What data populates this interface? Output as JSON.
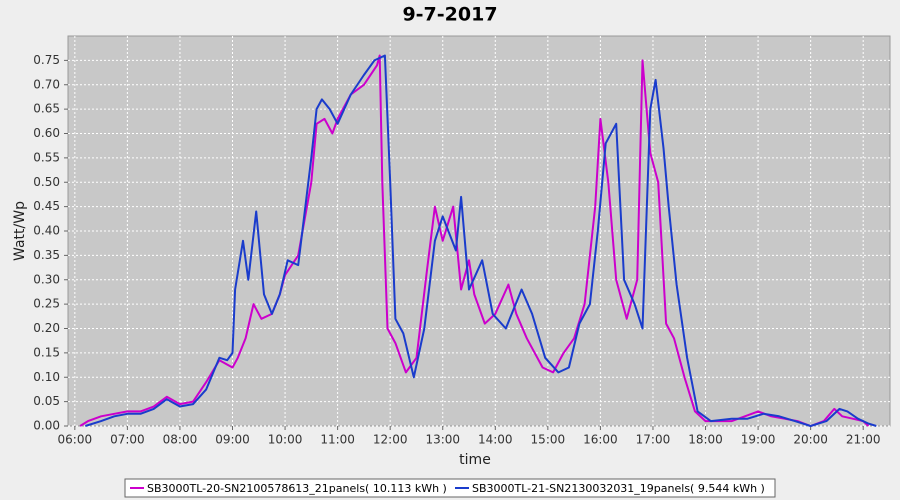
{
  "chart_data": {
    "type": "line",
    "title": "9-7-2017",
    "x_label": "time",
    "y_label": "Watt/Wp",
    "xlim": [
      5.87,
      21.51
    ],
    "xticks": [
      {
        "value": 6,
        "label": "06:00"
      },
      {
        "value": 7,
        "label": "07:00"
      },
      {
        "value": 8,
        "label": "08:00"
      },
      {
        "value": 9,
        "label": "09:00"
      },
      {
        "value": 10,
        "label": "10:00"
      },
      {
        "value": 11,
        "label": "11:00"
      },
      {
        "value": 12,
        "label": "12:00"
      },
      {
        "value": 13,
        "label": "13:00"
      },
      {
        "value": 14,
        "label": "14:00"
      },
      {
        "value": 15,
        "label": "15:00"
      },
      {
        "value": 16,
        "label": "16:00"
      },
      {
        "value": 17,
        "label": "17:00"
      },
      {
        "value": 18,
        "label": "18:00"
      },
      {
        "value": 19,
        "label": "19:00"
      },
      {
        "value": 20,
        "label": "20:00"
      },
      {
        "value": 21,
        "label": "21:00"
      }
    ],
    "ylim": [
      0,
      0.8
    ],
    "yticks": [
      {
        "value": 0,
        "label": "0.00"
      },
      0.05,
      {
        "value": 0.1,
        "label": "0.10"
      },
      0.15,
      {
        "value": 0.2,
        "label": "0.20"
      },
      0.25,
      {
        "value": 0.3,
        "label": "0.30"
      },
      0.35,
      {
        "value": 0.4,
        "label": "0.40"
      },
      0.45,
      {
        "value": 0.5,
        "label": "0.50"
      },
      0.55,
      {
        "value": 0.6,
        "label": "0.60"
      },
      0.65,
      {
        "value": 0.7,
        "label": "0.70"
      },
      0.75
    ],
    "grid": true,
    "legend": "bottom",
    "series": [
      {
        "name": "SB3000TL-20-SN2100578613_21panels( 10.113 kWh )",
        "color": "#cc00cc",
        "x": [
          6.1,
          6.25,
          6.5,
          6.75,
          7.0,
          7.25,
          7.5,
          7.75,
          8.0,
          8.25,
          8.5,
          8.75,
          9.0,
          9.1,
          9.25,
          9.4,
          9.55,
          9.75,
          9.9,
          10.0,
          10.25,
          10.5,
          10.6,
          10.75,
          10.9,
          11.0,
          11.25,
          11.5,
          11.75,
          11.8,
          11.85,
          11.95,
          12.1,
          12.3,
          12.5,
          12.7,
          12.85,
          13.0,
          13.2,
          13.35,
          13.5,
          13.6,
          13.8,
          14.0,
          14.25,
          14.4,
          14.6,
          14.9,
          15.1,
          15.3,
          15.5,
          15.7,
          15.9,
          16.0,
          16.15,
          16.3,
          16.5,
          16.7,
          16.8,
          16.95,
          17.1,
          17.25,
          17.4,
          17.6,
          17.8,
          18.0,
          18.25,
          18.5,
          18.75,
          19.0,
          19.25,
          19.5,
          19.75,
          20.0,
          20.25,
          20.45,
          20.6,
          20.8,
          21.0,
          21.1
        ],
        "values": [
          0,
          0.01,
          0.02,
          0.025,
          0.03,
          0.03,
          0.04,
          0.06,
          0.045,
          0.05,
          0.09,
          0.135,
          0.12,
          0.14,
          0.18,
          0.25,
          0.22,
          0.23,
          0.27,
          0.31,
          0.35,
          0.5,
          0.62,
          0.63,
          0.6,
          0.63,
          0.68,
          0.7,
          0.74,
          0.76,
          0.5,
          0.2,
          0.17,
          0.11,
          0.14,
          0.32,
          0.45,
          0.38,
          0.45,
          0.28,
          0.34,
          0.27,
          0.21,
          0.23,
          0.29,
          0.23,
          0.18,
          0.12,
          0.11,
          0.15,
          0.18,
          0.25,
          0.45,
          0.63,
          0.5,
          0.3,
          0.22,
          0.3,
          0.75,
          0.56,
          0.5,
          0.21,
          0.18,
          0.1,
          0.03,
          0.01,
          0.01,
          0.01,
          0.02,
          0.03,
          0.02,
          0.015,
          0.01,
          0,
          0.01,
          0.035,
          0.02,
          0.015,
          0.01,
          0
        ]
      },
      {
        "name": "SB3000TL-21-SN2130032031_19panels( 9.544 kWh )",
        "color": "#1a3ccc",
        "x": [
          6.2,
          6.5,
          6.75,
          7.0,
          7.25,
          7.5,
          7.75,
          8.0,
          8.25,
          8.5,
          8.75,
          8.9,
          9.0,
          9.05,
          9.2,
          9.3,
          9.45,
          9.6,
          9.75,
          9.9,
          10.05,
          10.25,
          10.5,
          10.6,
          10.7,
          10.85,
          11.0,
          11.25,
          11.5,
          11.7,
          11.9,
          12.0,
          12.1,
          12.25,
          12.45,
          12.65,
          12.85,
          13.0,
          13.25,
          13.35,
          13.5,
          13.75,
          13.95,
          14.2,
          14.5,
          14.7,
          14.95,
          15.2,
          15.4,
          15.6,
          15.8,
          15.95,
          16.1,
          16.3,
          16.45,
          16.65,
          16.8,
          16.95,
          17.05,
          17.2,
          17.3,
          17.45,
          17.65,
          17.85,
          18.1,
          18.5,
          18.8,
          19.1,
          19.4,
          19.7,
          20.0,
          20.3,
          20.55,
          20.7,
          20.9,
          21.1,
          21.25
        ],
        "values": [
          0,
          0.01,
          0.02,
          0.025,
          0.025,
          0.035,
          0.055,
          0.04,
          0.045,
          0.075,
          0.14,
          0.135,
          0.15,
          0.28,
          0.38,
          0.3,
          0.44,
          0.27,
          0.23,
          0.27,
          0.34,
          0.33,
          0.55,
          0.65,
          0.67,
          0.65,
          0.62,
          0.68,
          0.72,
          0.75,
          0.76,
          0.5,
          0.22,
          0.19,
          0.1,
          0.2,
          0.38,
          0.43,
          0.36,
          0.47,
          0.28,
          0.34,
          0.23,
          0.2,
          0.28,
          0.23,
          0.14,
          0.11,
          0.12,
          0.21,
          0.25,
          0.4,
          0.58,
          0.62,
          0.3,
          0.25,
          0.2,
          0.65,
          0.71,
          0.57,
          0.45,
          0.29,
          0.14,
          0.03,
          0.01,
          0.015,
          0.015,
          0.025,
          0.02,
          0.01,
          0,
          0.01,
          0.035,
          0.03,
          0.015,
          0.005,
          0
        ]
      }
    ]
  }
}
